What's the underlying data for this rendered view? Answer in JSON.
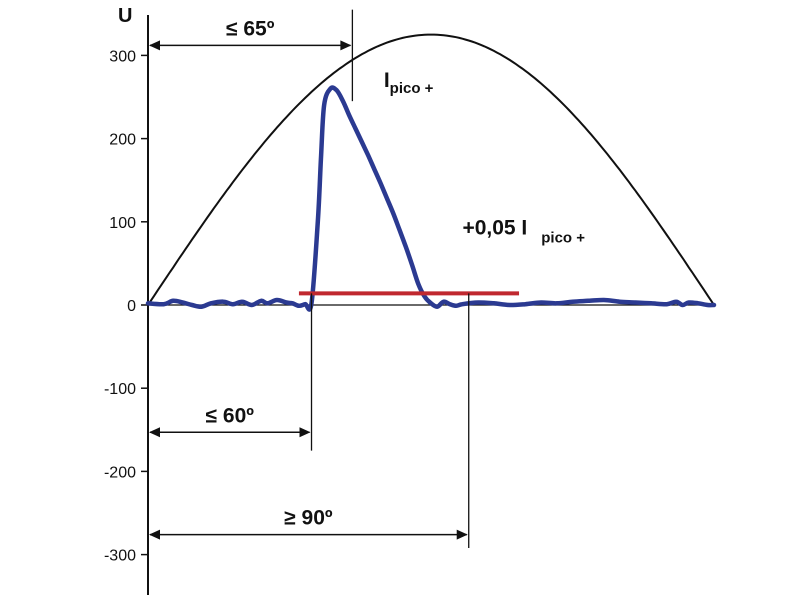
{
  "chart_data": {
    "type": "line",
    "ylabel": "U",
    "ylim": [
      -340,
      355
    ],
    "xlim": [
      0,
      180
    ],
    "yticks": [
      300,
      200,
      100,
      0,
      -100,
      -200,
      -300
    ],
    "ytick_labels": [
      "300",
      "200",
      "100",
      "0",
      "-100",
      "-200",
      "-300"
    ],
    "series": [
      {
        "role": "voltage-sine",
        "color": "#111111",
        "amplitude": 325,
        "x": [
          0,
          180
        ]
      },
      {
        "role": "current-pulse",
        "color": "#2b3a91",
        "x": [
          0,
          5,
          8,
          11,
          14,
          17,
          20,
          24,
          27,
          30,
          33,
          36,
          38,
          41,
          44,
          46,
          48,
          50,
          52,
          54,
          55,
          56,
          58,
          60,
          62,
          64,
          66,
          68,
          70,
          72,
          74,
          76,
          78,
          80,
          82,
          84,
          86,
          88,
          90,
          92,
          94,
          96,
          98,
          100,
          105,
          110,
          115,
          120,
          125,
          130,
          135,
          140,
          145,
          150,
          155,
          160,
          165,
          168,
          170,
          172,
          175,
          178,
          180
        ],
        "y": [
          2,
          1,
          5,
          3,
          0,
          -2,
          2,
          4,
          1,
          4,
          0,
          5,
          2,
          6,
          3,
          2,
          -1,
          1,
          2,
          100,
          175,
          240,
          260,
          258,
          245,
          228,
          212,
          196,
          180,
          163,
          146,
          128,
          110,
          90,
          70,
          48,
          25,
          10,
          2,
          -2,
          4,
          1,
          -1,
          1,
          3,
          2,
          0,
          1,
          3,
          2,
          4,
          5,
          6,
          4,
          3,
          2,
          1,
          4,
          0,
          3,
          2,
          0,
          0
        ]
      },
      {
        "role": "threshold",
        "color": "#c0282f",
        "x": [
          48,
          118
        ],
        "y": [
          14,
          14
        ]
      }
    ],
    "annotations": [
      {
        "id": "peak-angle",
        "text": "≤ 65º",
        "x1": 0,
        "x2": 65,
        "y": 312
      },
      {
        "id": "start-angle",
        "text": "≤ 60º",
        "x1": 0,
        "x2": 52,
        "y": -153
      },
      {
        "id": "end-angle",
        "text": "≥ 90º",
        "x1": 0,
        "x2": 102,
        "y": -276
      }
    ],
    "labels": {
      "ipico": {
        "main": "I",
        "sub": "pico +"
      },
      "threshold": {
        "main": "+0,05 I",
        "sub": "pico +"
      }
    }
  }
}
